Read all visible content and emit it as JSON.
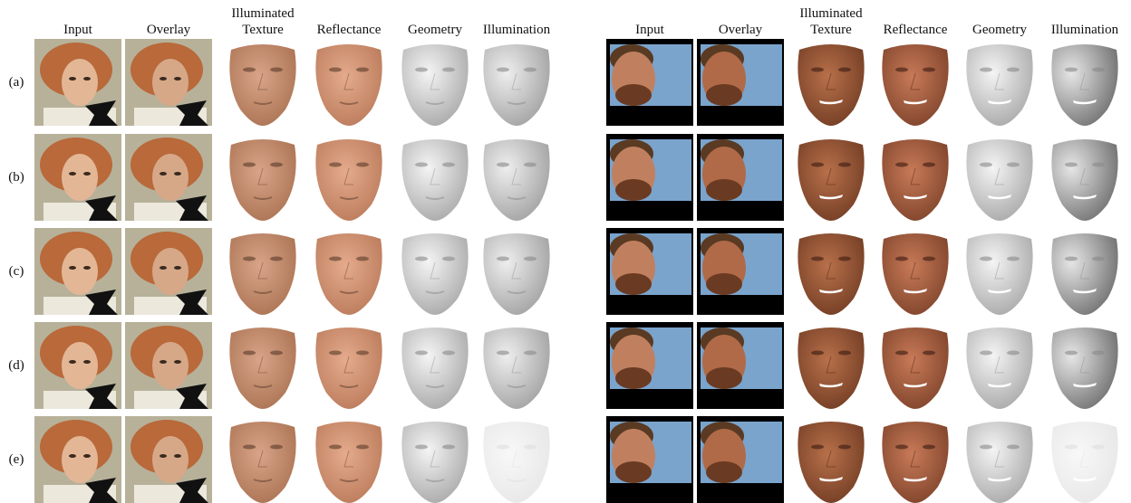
{
  "left": {
    "headers": [
      "Input",
      "Overlay",
      "Illuminated Texture",
      "Reflectance",
      "Geometry",
      "Illumination"
    ]
  },
  "right": {
    "headers": [
      "Input",
      "Overlay",
      "Illuminated Texture",
      "Reflectance",
      "Geometry",
      "Illumination"
    ]
  },
  "rows": [
    "(a)",
    "(b)",
    "(c)",
    "(d)",
    "(e)"
  ]
}
